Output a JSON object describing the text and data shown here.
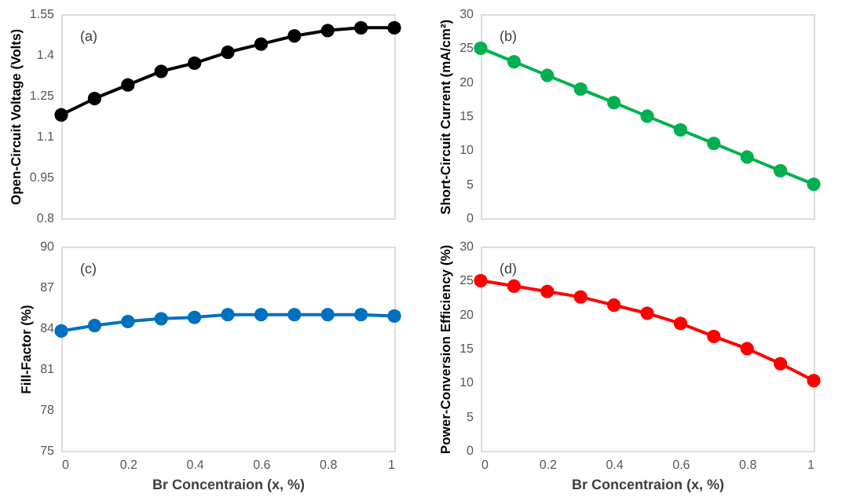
{
  "chart_data": [
    {
      "type": "line",
      "ylabel": "Open-Circuit Voltage (Volts)",
      "annotations": [
        "(a)"
      ],
      "x": [
        0,
        0.1,
        0.2,
        0.3,
        0.4,
        0.5,
        0.6,
        0.7,
        0.8,
        0.9,
        1
      ],
      "xlim": [
        0,
        1
      ],
      "ylim": [
        0.8,
        1.55
      ],
      "yticks": [
        0.8,
        0.95,
        1.1,
        1.25,
        1.4,
        1.55
      ],
      "tick_labels": "y",
      "marker": "circle",
      "line_style": "solid",
      "grid": false,
      "series": [
        {
          "color": "#000000",
          "values": [
            1.18,
            1.24,
            1.29,
            1.34,
            1.37,
            1.41,
            1.44,
            1.47,
            1.49,
            1.5,
            1.5
          ]
        }
      ]
    },
    {
      "type": "line",
      "ylabel": "Short-Circuit Current (mA/cm²)",
      "annotations": [
        "(b)"
      ],
      "x": [
        0,
        0.1,
        0.2,
        0.3,
        0.4,
        0.5,
        0.6,
        0.7,
        0.8,
        0.9,
        1
      ],
      "xlim": [
        0,
        1
      ],
      "ylim": [
        0,
        30
      ],
      "yticks": [
        0,
        5,
        10,
        15,
        20,
        25,
        30
      ],
      "tick_labels": "y",
      "marker": "circle",
      "line_style": "solid",
      "grid": false,
      "series": [
        {
          "color": "#00b050",
          "values": [
            25,
            23,
            21,
            19,
            17,
            15,
            13,
            11,
            9,
            7,
            5
          ]
        }
      ]
    },
    {
      "type": "line",
      "xlabel": "Br Concentraion (x, %)",
      "ylabel": "Fill-Factor (%)",
      "annotations": [
        "(c)"
      ],
      "x": [
        0,
        0.1,
        0.2,
        0.3,
        0.4,
        0.5,
        0.6,
        0.7,
        0.8,
        0.9,
        1
      ],
      "xlim": [
        0,
        1
      ],
      "xticks": [
        0,
        0.2,
        0.4,
        0.6,
        0.8,
        1
      ],
      "ylim": [
        75,
        90
      ],
      "yticks": [
        75,
        78,
        81,
        84,
        87,
        90
      ],
      "marker": "circle",
      "line_style": "solid",
      "grid": false,
      "series": [
        {
          "color": "#0070c0",
          "values": [
            83.8,
            84.2,
            84.5,
            84.7,
            84.8,
            85.0,
            85.0,
            85.0,
            85.0,
            85.0,
            84.9
          ]
        }
      ]
    },
    {
      "type": "line",
      "xlabel": "Br Concentraion (x, %)",
      "ylabel": "Power-Conversion Efficiency (%)",
      "annotations": [
        "(d)"
      ],
      "x": [
        0,
        0.1,
        0.2,
        0.3,
        0.4,
        0.5,
        0.6,
        0.7,
        0.8,
        0.9,
        1
      ],
      "xlim": [
        0,
        1
      ],
      "xticks": [
        0,
        0.2,
        0.4,
        0.6,
        0.8,
        1
      ],
      "ylim": [
        0,
        30
      ],
      "yticks": [
        0,
        5,
        10,
        15,
        20,
        25,
        30
      ],
      "marker": "circle",
      "line_style": "solid",
      "grid": false,
      "series": [
        {
          "color": "#ff0000",
          "values": [
            25.0,
            24.2,
            23.4,
            22.6,
            21.4,
            20.2,
            18.7,
            16.8,
            15.0,
            12.8,
            10.3
          ]
        }
      ]
    }
  ]
}
